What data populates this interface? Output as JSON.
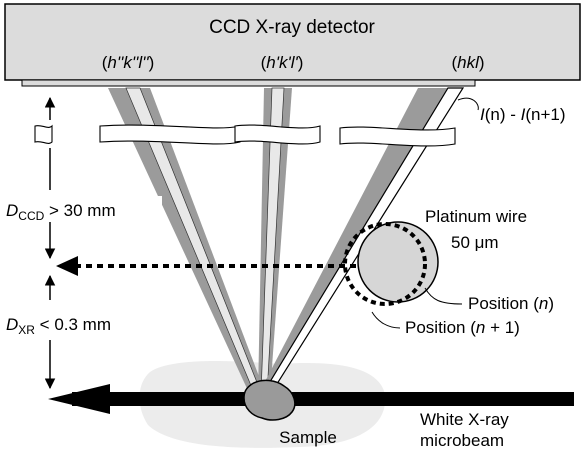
{
  "detector": {
    "title": "CCD X-ray detector"
  },
  "reflections": {
    "r1": {
      "pre": "(",
      "ital": "h''k''l''",
      "post": ")"
    },
    "r2": {
      "pre": "(",
      "ital": "h'k'l'",
      "post": ")"
    },
    "r3": {
      "pre": "(",
      "ital": "hkl",
      "post": ")"
    }
  },
  "intensity_label": {
    "a": "I",
    "b": "(n) - ",
    "c": "I",
    "d": "(n+1)"
  },
  "wire": {
    "line1": "Platinum wire",
    "line2": "50 μm"
  },
  "positions": {
    "p1": {
      "pre": "Position (",
      "ital": "n",
      "post": ")"
    },
    "p2": {
      "pre": "Position (",
      "ital": "n",
      "post": " + 1)"
    }
  },
  "distances": {
    "ccd": {
      "sym": "D",
      "sub": "CCD",
      "rest": " > 30 mm"
    },
    "xr": {
      "sym": "D",
      "sub": "XR",
      "rest": " < 0.3 mm"
    }
  },
  "sample": {
    "label": "Sample"
  },
  "beam": {
    "line1": "White X-ray",
    "line2": "microbeam"
  },
  "colors": {
    "beam_gray": "#9b9b9b",
    "beam_light": "#e2e2e2",
    "wire_fill": "#d6d6d6",
    "detector_fill": "#dcdcdc",
    "sample_fill": "#ececec"
  }
}
